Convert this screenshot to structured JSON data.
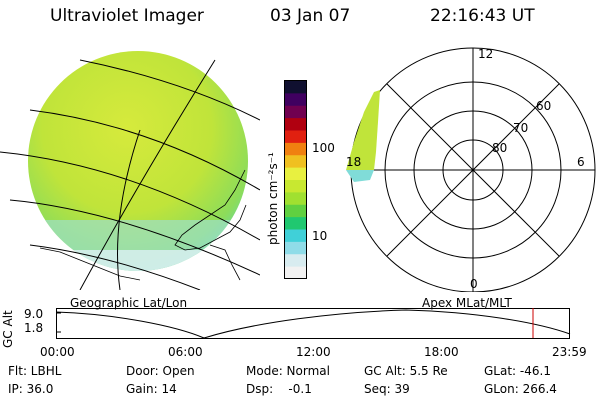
{
  "header": {
    "title": "Ultraviolet Imager",
    "date": "03 Jan 07",
    "time": "22:16:43 UT"
  },
  "colorbar": {
    "unit_label": "photon cm⁻²s⁻¹",
    "tick_100": "100",
    "tick_10": "10",
    "colors": [
      "#f2f2f2",
      "#d8ecf0",
      "#8fdce8",
      "#40d0d8",
      "#20c870",
      "#60d040",
      "#a0e030",
      "#c8e830",
      "#e8f040",
      "#f0c020",
      "#f08010",
      "#e02010",
      "#b00010",
      "#700050",
      "#400060",
      "#101030"
    ]
  },
  "polar": {
    "lbl_12": "12",
    "lbl_6": "6",
    "lbl_18": "18",
    "lbl_0": "0",
    "lbl_60": "60",
    "lbl_70": "70",
    "lbl_80": "80"
  },
  "map": {
    "label": "Geographic Lat/Lon",
    "fill": "#c8e638"
  },
  "altitude": {
    "axis_label": "GC Alt",
    "tick_top": "9.0",
    "tick_bottom": "1.8",
    "apex_label": "Apex  MLat/MLT",
    "x_ticks": [
      "00:00",
      "06:00",
      "12:00",
      "18:00",
      "23:59"
    ]
  },
  "info": {
    "row1": {
      "flt": "Flt: LBHL",
      "door": "Door: Open",
      "mode": "Mode: Normal",
      "gcalt": "GC Alt: 5.5 Re",
      "glat": "GLat: -46.1"
    },
    "row2": {
      "ip": "IP: 36.0",
      "gain": "Gain: 14",
      "dsp": "Dsp:    -0.1",
      "seq": "Seq: 39",
      "glon": "GLon: 266.4"
    }
  }
}
